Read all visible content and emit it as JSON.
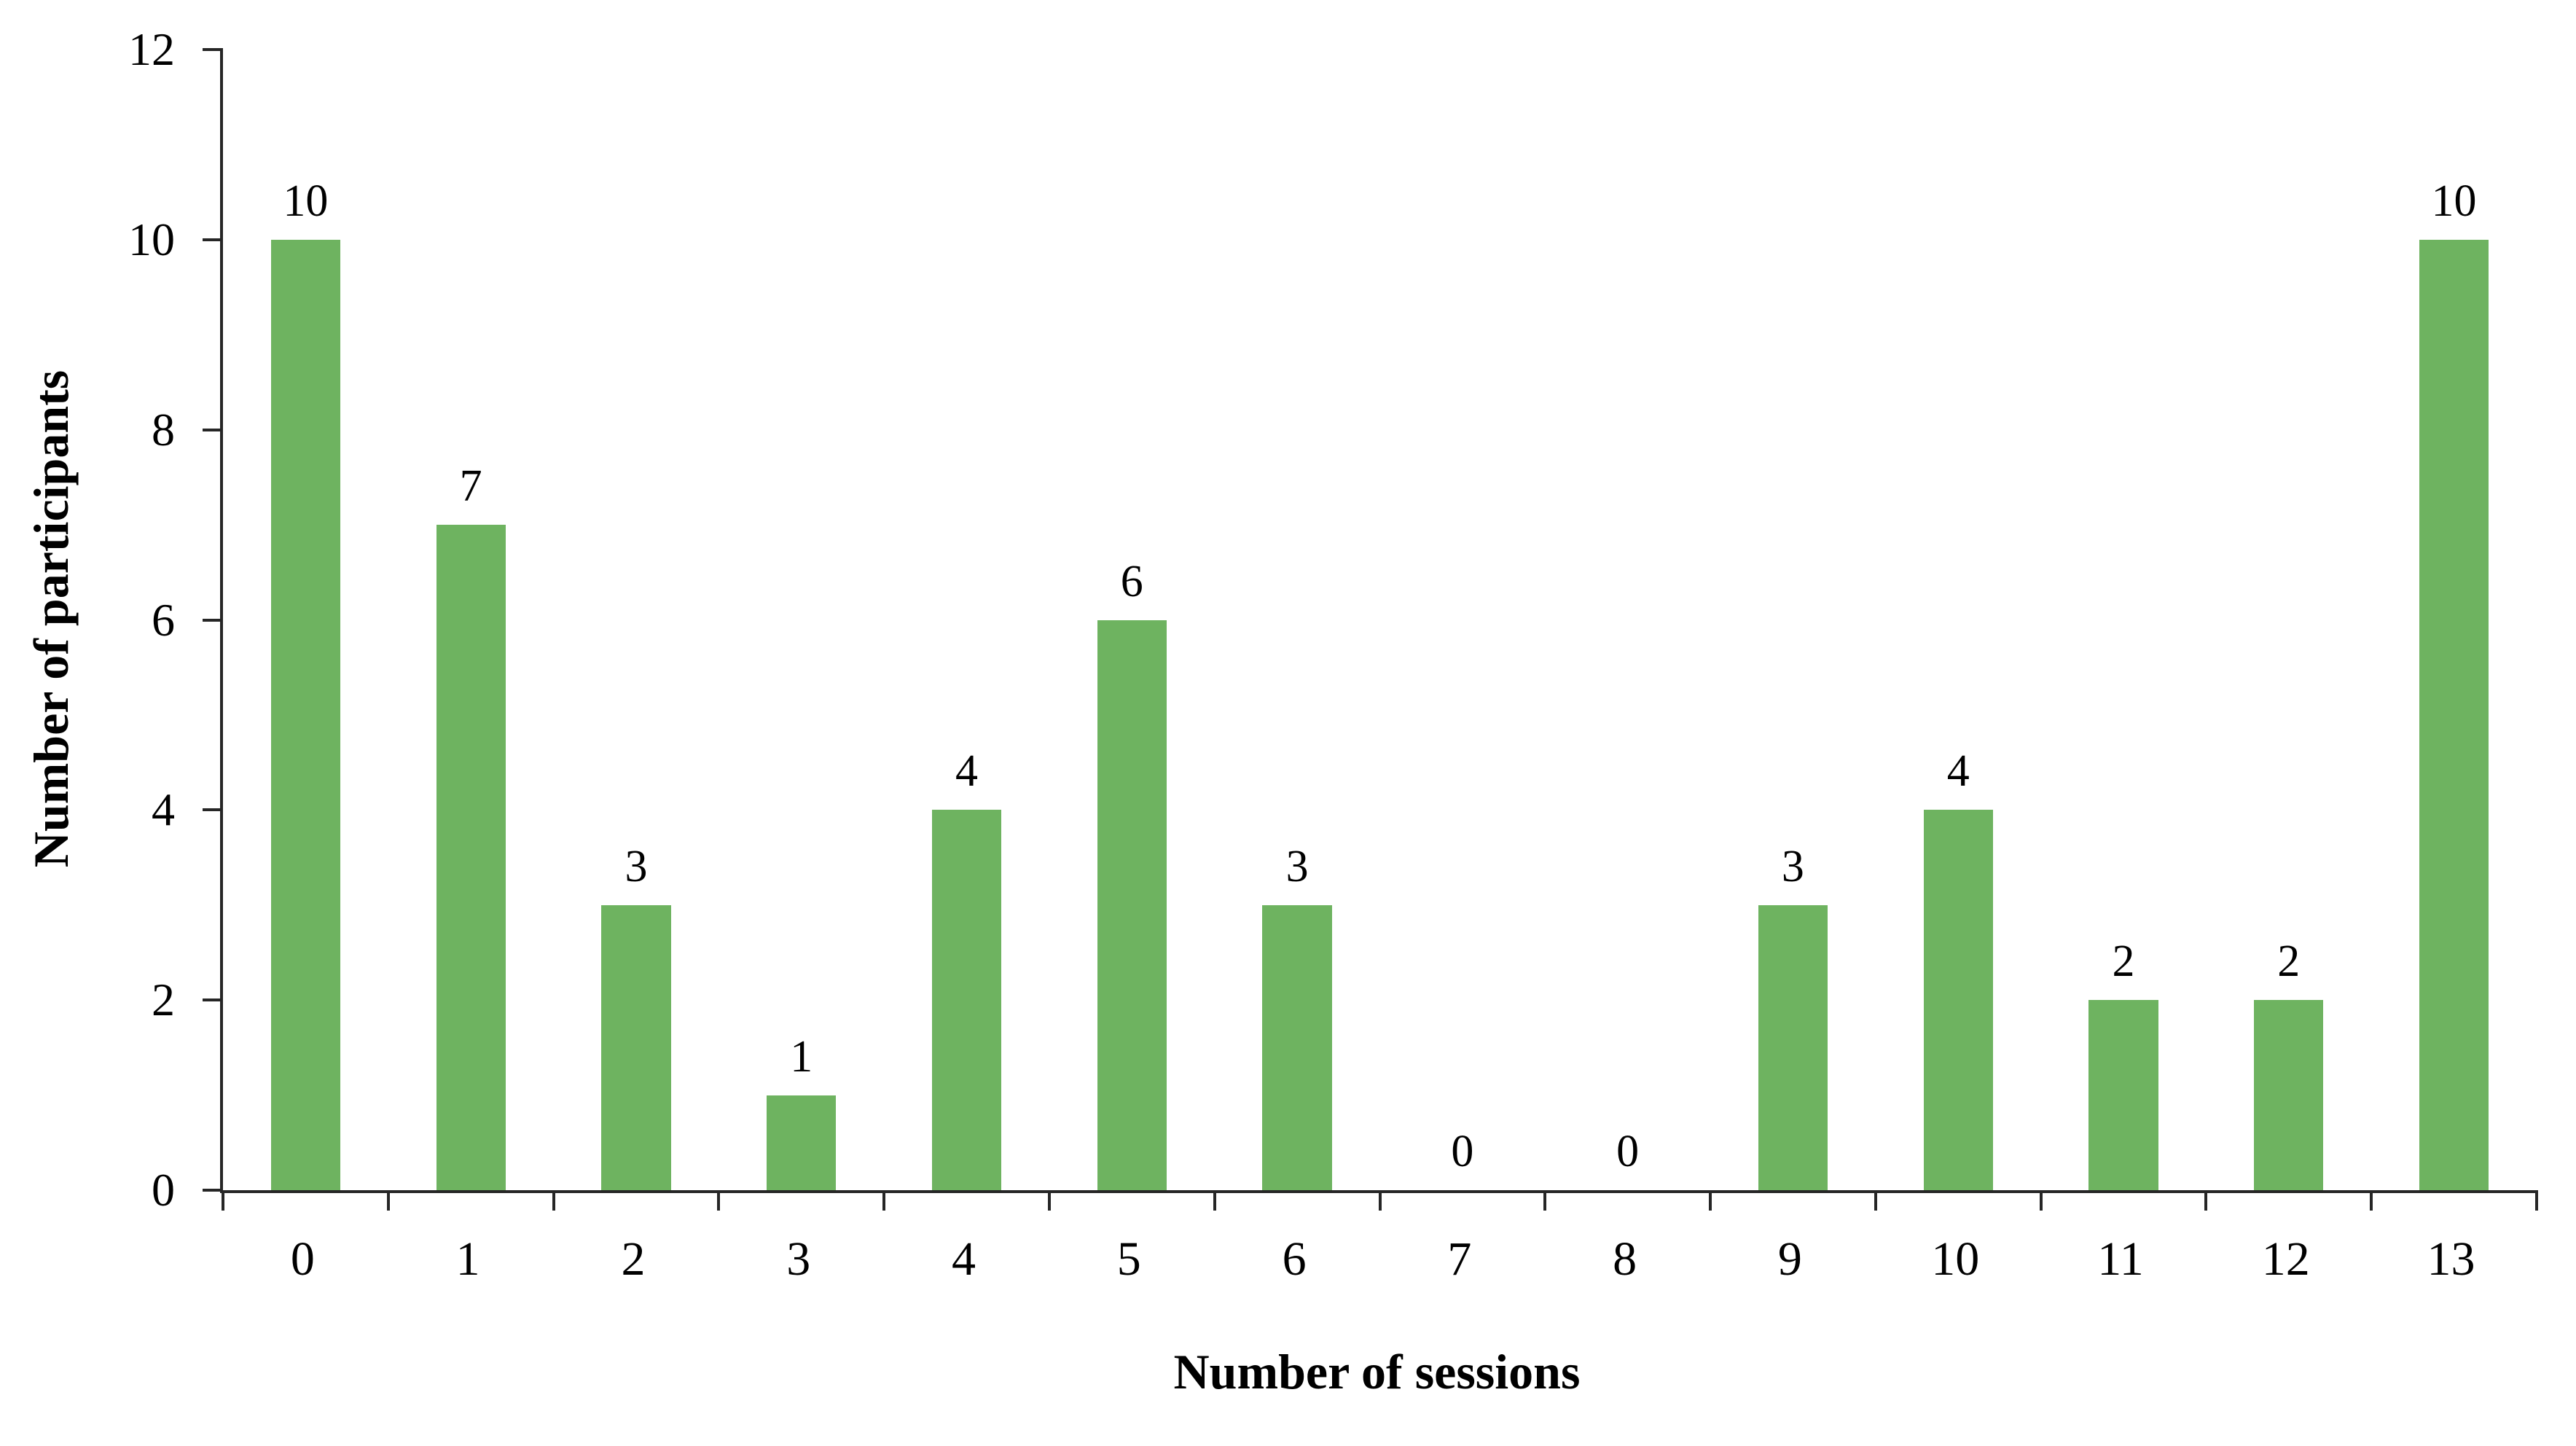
{
  "chart_data": {
    "type": "bar",
    "title": "",
    "xlabel": "Number of sessions",
    "ylabel": "Number of participants",
    "categories": [
      "0",
      "1",
      "2",
      "3",
      "4",
      "5",
      "6",
      "7",
      "8",
      "9",
      "10",
      "11",
      "12",
      "13"
    ],
    "values": [
      10,
      7,
      3,
      1,
      4,
      6,
      3,
      0,
      0,
      3,
      4,
      2,
      2,
      10
    ],
    "data_labels": [
      "10",
      "7",
      "3",
      "1",
      "4",
      "6",
      "3",
      "0",
      "0",
      "3",
      "4",
      "2",
      "2",
      "10"
    ],
    "ylim": [
      0,
      12
    ],
    "yticks": [
      0,
      2,
      4,
      6,
      8,
      10,
      12
    ],
    "bar_color": "#6EB360",
    "axis_color": "#262626",
    "grid": "off",
    "legend": "none"
  }
}
